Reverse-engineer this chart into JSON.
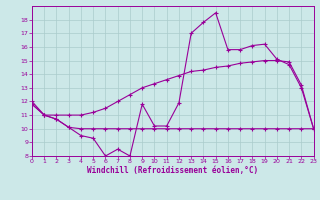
{
  "xlabel": "Windchill (Refroidissement éolien,°C)",
  "bg_color": "#cce8e8",
  "line_color": "#990099",
  "grid_color": "#aacccc",
  "x_min": 0,
  "x_max": 23,
  "y_min": 8,
  "y_max": 19,
  "x_ticks": [
    0,
    1,
    2,
    3,
    4,
    5,
    6,
    7,
    8,
    9,
    10,
    11,
    12,
    13,
    14,
    15,
    16,
    17,
    18,
    19,
    20,
    21,
    22,
    23
  ],
  "y_ticks": [
    8,
    9,
    10,
    11,
    12,
    13,
    14,
    15,
    16,
    17,
    18
  ],
  "line1_x": [
    0,
    1,
    2,
    3,
    4,
    5,
    6,
    7,
    8,
    9,
    10,
    11,
    12,
    13,
    14,
    15,
    16,
    17,
    18,
    19,
    20,
    21,
    22,
    23
  ],
  "line1_y": [
    12,
    11,
    10.7,
    10.1,
    9.5,
    9.3,
    8.0,
    8.5,
    8.0,
    11.8,
    10.2,
    10.2,
    11.9,
    17.0,
    17.8,
    18.5,
    15.8,
    15.8,
    16.1,
    16.2,
    15.1,
    14.7,
    13.0,
    10.0
  ],
  "line2_x": [
    0,
    1,
    2,
    3,
    4,
    5,
    6,
    7,
    8,
    9,
    10,
    11,
    12,
    13,
    14,
    15,
    16,
    17,
    18,
    19,
    20,
    21,
    22,
    23
  ],
  "line2_y": [
    11.8,
    11.0,
    10.7,
    10.1,
    10.0,
    10.0,
    10.0,
    10.0,
    10.0,
    10.0,
    10.0,
    10.0,
    10.0,
    10.0,
    10.0,
    10.0,
    10.0,
    10.0,
    10.0,
    10.0,
    10.0,
    10.0,
    10.0,
    10.0
  ],
  "line3_x": [
    0,
    1,
    2,
    3,
    4,
    5,
    6,
    7,
    8,
    9,
    10,
    11,
    12,
    13,
    14,
    15,
    16,
    17,
    18,
    19,
    20,
    21,
    22,
    23
  ],
  "line3_y": [
    11.8,
    11.0,
    11.0,
    11.0,
    11.0,
    11.2,
    11.5,
    12.0,
    12.5,
    13.0,
    13.3,
    13.6,
    13.9,
    14.2,
    14.3,
    14.5,
    14.6,
    14.8,
    14.9,
    15.0,
    15.0,
    14.9,
    13.2,
    10.0
  ]
}
